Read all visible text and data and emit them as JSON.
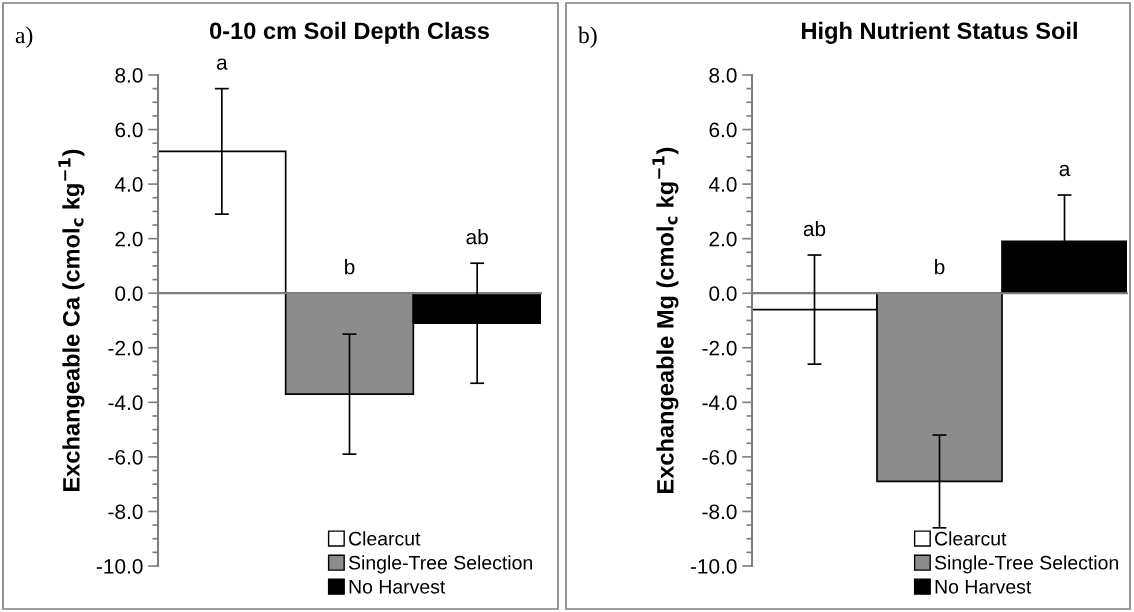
{
  "chart_data": [
    {
      "type": "bar",
      "title": "0-10 cm Soil Depth Class",
      "ylabel": "Exchangeable Ca (cmol$_{c}$ kg$^{−1}$)",
      "categories": [
        null
      ],
      "series": [
        {
          "name": "Clearcut",
          "color": "#ffffff",
          "values": [
            5.2
          ],
          "errors": [
            2.3
          ]
        },
        {
          "name": "Single-Tree Selection",
          "color": "#8c8c8c",
          "values": [
            -3.7
          ],
          "errors": [
            2.2
          ]
        },
        {
          "name": "No Harvest",
          "color": "#000000",
          "values": [
            -1.1
          ],
          "errors": [
            2.2
          ]
        }
      ],
      "annotations": [
        "a)",
        "a",
        "b",
        "ab"
      ],
      "ylim": [
        -10,
        8
      ],
      "yticks": [
        {
          "value": -10,
          "label": "-10.0"
        },
        {
          "value": -8,
          "label": "-8.0"
        },
        {
          "value": -6,
          "label": "-6.0"
        },
        {
          "value": -4,
          "label": "-4.0"
        },
        {
          "value": -2,
          "label": "-2.0"
        },
        {
          "value": 0,
          "label": "0.0"
        },
        {
          "value": 2,
          "label": "2.0"
        },
        {
          "value": 4,
          "label": "4.0"
        },
        {
          "value": 6,
          "label": "6.0"
        },
        {
          "value": 8,
          "label": "8.0"
        }
      ],
      "legend": "bottom right",
      "tick_labels": "y"
    },
    {
      "type": "bar",
      "title": "High Nutrient Status Soil",
      "ylabel": "Exchangeable Mg (cmol$_{c}$ kg$^{−1}$)",
      "categories": [
        null
      ],
      "series": [
        {
          "name": "Clearcut",
          "color": "#ffffff",
          "values": [
            -0.6
          ],
          "errors": [
            2.0
          ]
        },
        {
          "name": "Single-Tree Selection",
          "color": "#8c8c8c",
          "values": [
            -6.9
          ],
          "errors": [
            1.7
          ]
        },
        {
          "name": "No Harvest",
          "color": "#000000",
          "values": [
            1.9
          ],
          "errors": [
            1.7
          ]
        }
      ],
      "annotations": [
        "b)",
        "ab",
        "b",
        "a"
      ],
      "ylim": [
        -10,
        8
      ],
      "yticks": [
        {
          "value": -10,
          "label": "-10.0"
        },
        {
          "value": -8,
          "label": "-8.0"
        },
        {
          "value": -6,
          "label": "-6.0"
        },
        {
          "value": -4,
          "label": "-4.0"
        },
        {
          "value": -2,
          "label": "-2.0"
        },
        {
          "value": 0,
          "label": "0.0"
        },
        {
          "value": 2,
          "label": "2.0"
        },
        {
          "value": 4,
          "label": "4.0"
        },
        {
          "value": 6,
          "label": "6.0"
        },
        {
          "value": 8,
          "label": "8.0"
        }
      ],
      "legend": "bottom right",
      "tick_labels": "y"
    }
  ]
}
